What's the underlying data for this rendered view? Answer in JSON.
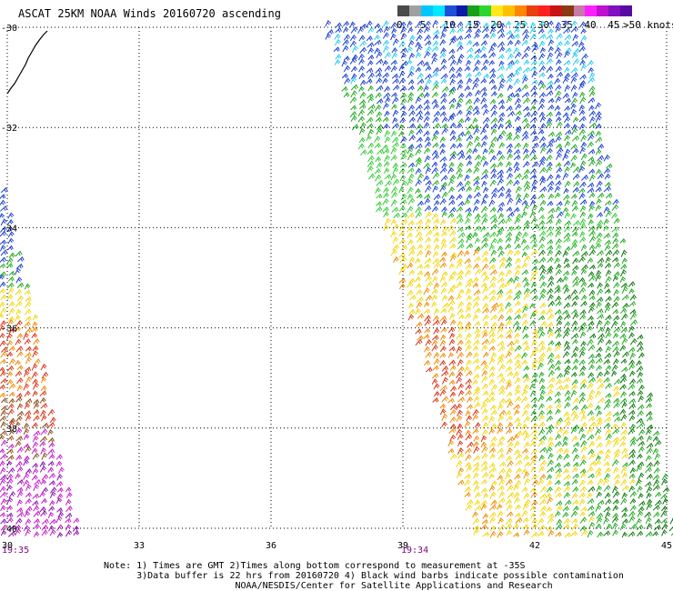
{
  "title": "ASCAT 25KM NOAA Winds 20160720 ascending",
  "legend": {
    "bins": [
      {
        "label": "0",
        "color": "#4a4a4a"
      },
      {
        "label": "",
        "color": "#a0a0a0"
      },
      {
        "label": "5",
        "color": "#00c8ff"
      },
      {
        "label": "",
        "color": "#00e8ff"
      },
      {
        "label": "10",
        "color": "#1e4fd8"
      },
      {
        "label": "",
        "color": "#0b1aa8"
      },
      {
        "label": "15",
        "color": "#19a019"
      },
      {
        "label": "",
        "color": "#2ed52e"
      },
      {
        "label": "20",
        "color": "#ffe81a"
      },
      {
        "label": "",
        "color": "#ffc000"
      },
      {
        "label": "25",
        "color": "#ff8800"
      },
      {
        "label": "",
        "color": "#e84010"
      },
      {
        "label": "30",
        "color": "#ff2020"
      },
      {
        "label": "",
        "color": "#c81414"
      },
      {
        "label": "35",
        "color": "#8a3a12"
      },
      {
        "label": "",
        "color": "#c87aa8"
      },
      {
        "label": "40",
        "color": "#ff20ff"
      },
      {
        "label": "",
        "color": "#c010d0"
      },
      {
        "label": "45",
        "color": "#8010c0"
      },
      {
        "label": "",
        "color": "#5a0aa0"
      }
    ],
    "max_label": ">50 knots"
  },
  "map": {
    "lat_labels": [
      "-30",
      "-32",
      "-34",
      "-36",
      "-38",
      "-40"
    ],
    "lon_labels": [
      "30",
      "33",
      "36",
      "39",
      "42",
      "45"
    ],
    "lat_values": [
      -30,
      -32,
      -34,
      -36,
      -38,
      -40
    ],
    "lon_values": [
      30,
      33,
      36,
      39,
      42,
      45
    ]
  },
  "times": {
    "left": "19:35",
    "right": "19:34"
  },
  "notes": {
    "line1": "Note: 1) Times are GMT 2)Times along bottom correspond to measurement at -35S",
    "line2": "      3)Data buffer is 22 hrs from 20160720 4) Black wind barbs indicate possible contamination",
    "line3": "                        NOAA/NESDIS/Center for Satellite Applications and Research"
  },
  "wind_colors": {
    "lightblue": "#22ccee",
    "blue": "#1a3fd0",
    "green": "#1faa1f",
    "lightgreen": "#33cc33",
    "darkgreen": "#0c7a0c",
    "yellow": "#f2d60a",
    "orange": "#f08a00",
    "red": "#d83014",
    "brown": "#8a4a1a",
    "magenta": "#c418c8",
    "purple": "#8a10b0"
  }
}
